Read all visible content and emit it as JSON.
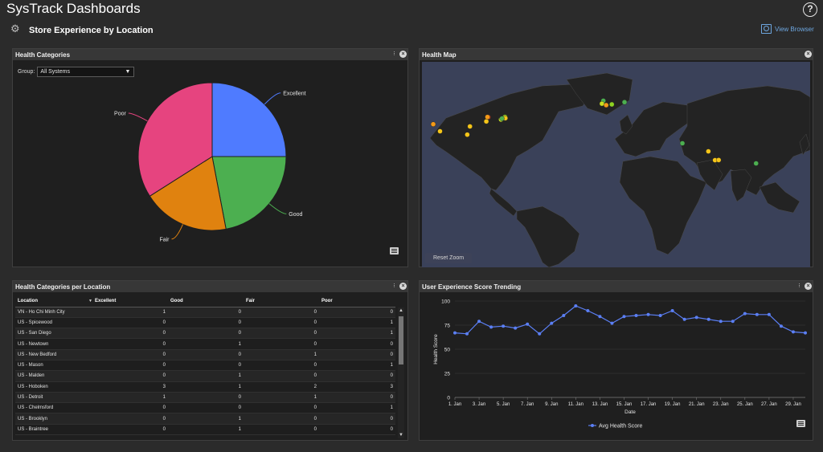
{
  "app": {
    "title": "SysTrack Dashboards",
    "help_glyph": "?"
  },
  "page": {
    "title": "Store Experience by Location",
    "view_browser_label": "View Browser"
  },
  "panels": {
    "health_categories": {
      "title": "Health Categories",
      "group_label": "Group:",
      "group_value": "All Systems"
    },
    "health_map": {
      "title": "Health Map",
      "reset_zoom_label": "Reset Zoom"
    },
    "table": {
      "title": "Health Categories per Location",
      "columns": [
        "Location",
        "Excellent",
        "Good",
        "Fair",
        "Poor"
      ],
      "rows": [
        [
          "VN - Ho Chi Minh City",
          "1",
          "0",
          "0",
          "0"
        ],
        [
          "US - Spicewood",
          "0",
          "0",
          "0",
          "1"
        ],
        [
          "US - San Diego",
          "0",
          "0",
          "0",
          "1"
        ],
        [
          "US - Newtown",
          "0",
          "1",
          "0",
          "0"
        ],
        [
          "US - New Bedford",
          "0",
          "0",
          "1",
          "0"
        ],
        [
          "US - Mason",
          "0",
          "0",
          "0",
          "1"
        ],
        [
          "US - Malden",
          "0",
          "1",
          "0",
          "0"
        ],
        [
          "US - Hoboken",
          "3",
          "1",
          "2",
          "3"
        ],
        [
          "US - Detroit",
          "1",
          "0",
          "1",
          "0"
        ],
        [
          "US - Chelmsford",
          "0",
          "0",
          "0",
          "1"
        ],
        [
          "US - Brooklyn",
          "0",
          "1",
          "0",
          "0"
        ],
        [
          "US - Braintree",
          "0",
          "1",
          "0",
          "0"
        ]
      ]
    },
    "trend": {
      "title": "User Experience Score Trending"
    }
  },
  "chart_data": [
    {
      "type": "pie",
      "title": "",
      "slices": [
        {
          "label": "Excellent",
          "value": 25,
          "color": "#4f7bff"
        },
        {
          "label": "Good",
          "value": 22,
          "color": "#4caf50"
        },
        {
          "label": "Fair",
          "value": 19,
          "color": "#e0820f"
        },
        {
          "label": "Poor",
          "value": 34,
          "color": "#e6447f"
        }
      ]
    },
    {
      "type": "line",
      "title": "",
      "xlabel": "Date",
      "ylabel": "Health Score",
      "ylim": [
        0,
        100
      ],
      "yticks": [
        0,
        25,
        50,
        75,
        100
      ],
      "x": [
        "1. Jan",
        "2. Jan",
        "3. Jan",
        "4. Jan",
        "5. Jan",
        "6. Jan",
        "7. Jan",
        "8. Jan",
        "9. Jan",
        "10. Jan",
        "11. Jan",
        "12. Jan",
        "13. Jan",
        "14. Jan",
        "15. Jan",
        "16. Jan",
        "17. Jan",
        "18. Jan",
        "19. Jan",
        "20. Jan",
        "21. Jan",
        "22. Jan",
        "23. Jan",
        "24. Jan",
        "25. Jan",
        "26. Jan",
        "27. Jan",
        "28. Jan",
        "29. Jan",
        "30. Jan"
      ],
      "xtick_labels": [
        "1. Jan",
        "3. Jan",
        "5. Jan",
        "7. Jan",
        "9. Jan",
        "11. Jan",
        "13. Jan",
        "15. Jan",
        "17. Jan",
        "19. Jan",
        "21. Jan",
        "23. Jan",
        "25. Jan",
        "27. Jan",
        "29. Jan"
      ],
      "series": [
        {
          "name": "Avg Health Score",
          "color": "#5b7ff5",
          "values": [
            67,
            66,
            79,
            73,
            74,
            72,
            76,
            66,
            77,
            85,
            95,
            90,
            84,
            77,
            84,
            85,
            86,
            85,
            90,
            81,
            83,
            81,
            79,
            79,
            87,
            86,
            86,
            74,
            68,
            67
          ]
        }
      ]
    }
  ],
  "map_points": [
    {
      "lon": -117.2,
      "lat": 32.7,
      "color": "#f5c518"
    },
    {
      "lon": -97.9,
      "lat": 30.4,
      "color": "#f5c518"
    },
    {
      "lon": -84.4,
      "lat": 39.4,
      "color": "#f5c518"
    },
    {
      "lon": -83.0,
      "lat": 42.3,
      "color": "#e8401c"
    },
    {
      "lon": -83.6,
      "lat": 42.4,
      "color": "#f59a18"
    },
    {
      "lon": -71.3,
      "lat": 42.5,
      "color": "#f5c518"
    },
    {
      "lon": -71.1,
      "lat": 42.4,
      "color": "#8fd321"
    },
    {
      "lon": -74.0,
      "lat": 40.7,
      "color": "#c8e021"
    },
    {
      "lon": -70.9,
      "lat": 41.6,
      "color": "#f5c518"
    },
    {
      "lon": -73.3,
      "lat": 41.4,
      "color": "#4caf50"
    },
    {
      "lon": -96.0,
      "lat": 36.0,
      "color": "#f5c518"
    },
    {
      "lon": -122.0,
      "lat": 37.5,
      "color": "#f59a18"
    },
    {
      "lon": -1.5,
      "lat": 53.5,
      "color": "#4caf50"
    },
    {
      "lon": -2.5,
      "lat": 51.5,
      "color": "#c8e021"
    },
    {
      "lon": 0.5,
      "lat": 50.5,
      "color": "#f59a18"
    },
    {
      "lon": 4.5,
      "lat": 51.0,
      "color": "#8fd321"
    },
    {
      "lon": 13.5,
      "lat": 52.5,
      "color": "#4caf50"
    },
    {
      "lon": 54.5,
      "lat": 24.5,
      "color": "#4caf50"
    },
    {
      "lon": 72.9,
      "lat": 19.0,
      "color": "#f5c518"
    },
    {
      "lon": 77.6,
      "lat": 13.0,
      "color": "#f5c518"
    },
    {
      "lon": 80.2,
      "lat": 13.1,
      "color": "#f5c518"
    },
    {
      "lon": 106.7,
      "lat": 10.8,
      "color": "#4caf50"
    }
  ]
}
